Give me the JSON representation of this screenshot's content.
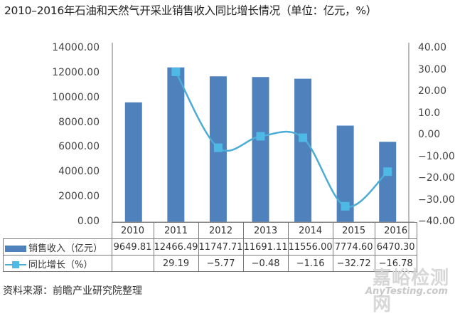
{
  "title": "2010–2016年石油和天然气开采业销售收入同比增长情况（单位：亿元，%）",
  "left_axis_ticks": [
    "14000.00",
    "12000.00",
    "10000.00",
    "8000.00",
    "6000.00",
    "4000.00",
    "2000.00",
    "0.00"
  ],
  "right_axis_ticks": [
    "40.00",
    "30.00",
    "20.00",
    "10.0",
    "0.00",
    "−10.00",
    "−20.00",
    "−30.00",
    "−40.00"
  ],
  "table": {
    "years": [
      "2010",
      "2011",
      "2012",
      "2013",
      "2014",
      "2015",
      "2016"
    ],
    "rows": [
      {
        "label": "销售收入（亿元）",
        "legend": "bar",
        "values": [
          "9649.81",
          "12466.49",
          "11747.71",
          "11691.11",
          "11556.00",
          "7774.60",
          "6470.30"
        ]
      },
      {
        "label": "同比增长（%）",
        "legend": "line",
        "values": [
          "",
          "29.19",
          "−5.77",
          "−0.48",
          "−1.16",
          "−32.72",
          "−16.78"
        ]
      }
    ]
  },
  "source": "资料来源：前瞻产业研究院整理",
  "watermark": {
    "cn": "嘉峪检测网",
    "en": "AnyTesting.com"
  },
  "colors": {
    "bar": "#4f81bd",
    "line": "#4bacd6",
    "marker": "#4fb9e6",
    "axis": "#8c8c8c"
  },
  "chart_data": {
    "type": "bar",
    "title": "2010–2016年石油和天然气开采业销售收入同比增长情况（单位：亿元，%）",
    "categories": [
      "2010",
      "2011",
      "2012",
      "2013",
      "2014",
      "2015",
      "2016"
    ],
    "series": [
      {
        "name": "销售收入（亿元）",
        "type": "bar",
        "axis": "left",
        "values": [
          9649.81,
          12466.49,
          11747.71,
          11691.11,
          11556.0,
          7774.6,
          6470.3
        ]
      },
      {
        "name": "同比增长（%）",
        "type": "line",
        "axis": "right",
        "smooth": true,
        "values": [
          null,
          29.19,
          -5.77,
          -0.48,
          -1.16,
          -32.72,
          -16.78
        ]
      }
    ],
    "xlabel": "",
    "ylabel": "",
    "ylim": [
      0,
      14000
    ],
    "y2lim": [
      -40,
      40
    ],
    "yticks": [
      0,
      2000,
      4000,
      6000,
      8000,
      10000,
      12000,
      14000
    ],
    "y2ticks": [
      -40,
      -30,
      -20,
      -10,
      0,
      10,
      20,
      30,
      40
    ],
    "grid": false,
    "legend_position": "data-table",
    "annotation": "资料来源：前瞻产业研究院整理"
  }
}
